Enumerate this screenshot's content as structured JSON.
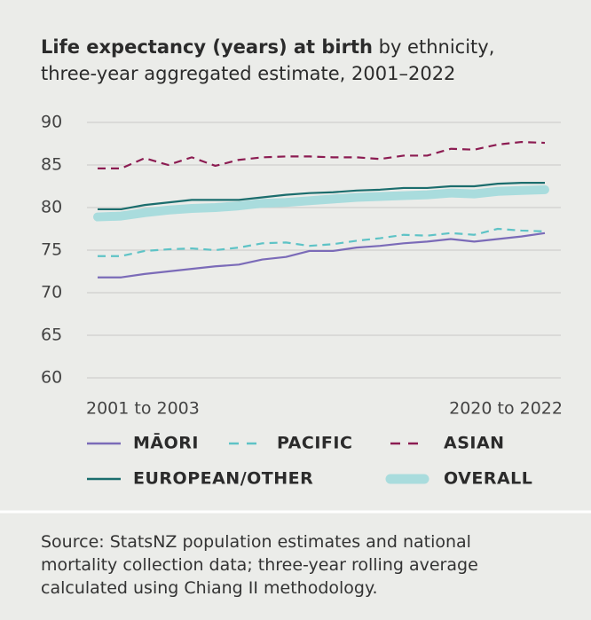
{
  "chart_data": {
    "type": "line",
    "title": [
      "Life expectancy (years) at birth",
      " by ethnicity,",
      "three-year aggregated estimate, 2001–2022"
    ],
    "categories": [
      "2001 to 2003",
      null,
      null,
      null,
      null,
      null,
      null,
      null,
      null,
      null,
      null,
      null,
      null,
      null,
      null,
      null,
      null,
      null,
      null,
      "2020 to 2022"
    ],
    "ylim": [
      60,
      90
    ],
    "yticks": [
      60,
      65,
      70,
      75,
      80,
      85,
      90
    ],
    "grid": true,
    "series": [
      {
        "name": "MĀORI",
        "color": "#7b6bb8",
        "style": "solid",
        "values": [
          71.8,
          71.8,
          72.2,
          72.5,
          72.8,
          73.1,
          73.3,
          73.9,
          74.2,
          74.9,
          74.9,
          75.3,
          75.5,
          75.8,
          76.0,
          76.3,
          76.0,
          76.3,
          76.6,
          77.0
        ]
      },
      {
        "name": "PACIFIC",
        "color": "#5ec3c6",
        "style": "dashed",
        "values": [
          74.3,
          74.3,
          74.9,
          75.1,
          75.2,
          75.0,
          75.3,
          75.8,
          75.9,
          75.5,
          75.7,
          76.1,
          76.4,
          76.8,
          76.7,
          77.0,
          76.8,
          77.5,
          77.3,
          77.2
        ]
      },
      {
        "name": "ASIAN",
        "color": "#8c1c52",
        "style": "dashed",
        "values": [
          84.6,
          84.6,
          85.8,
          85.0,
          85.9,
          84.9,
          85.6,
          85.9,
          86.0,
          86.0,
          85.9,
          85.9,
          85.7,
          86.1,
          86.1,
          86.9,
          86.8,
          87.4,
          87.7,
          87.6
        ]
      },
      {
        "name": "EUROPEAN/OTHER",
        "color": "#1b6d6d",
        "style": "solid",
        "values": [
          79.8,
          79.8,
          80.3,
          80.6,
          80.9,
          80.9,
          80.9,
          81.2,
          81.5,
          81.7,
          81.8,
          82.0,
          82.1,
          82.3,
          82.3,
          82.5,
          82.5,
          82.8,
          82.9,
          82.9
        ]
      },
      {
        "name": "OVERALL",
        "color": "#a9dcdd",
        "style": "band",
        "values": [
          78.9,
          79.0,
          79.4,
          79.7,
          79.9,
          80.0,
          80.2,
          80.5,
          80.6,
          80.8,
          81.0,
          81.2,
          81.3,
          81.4,
          81.5,
          81.7,
          81.6,
          81.9,
          82.0,
          82.1
        ]
      }
    ]
  },
  "source": [
    "Source: StatsNZ population estimates and national",
    "mortality collection data; three-year rolling average",
    "calculated using Chiang II methodology."
  ]
}
